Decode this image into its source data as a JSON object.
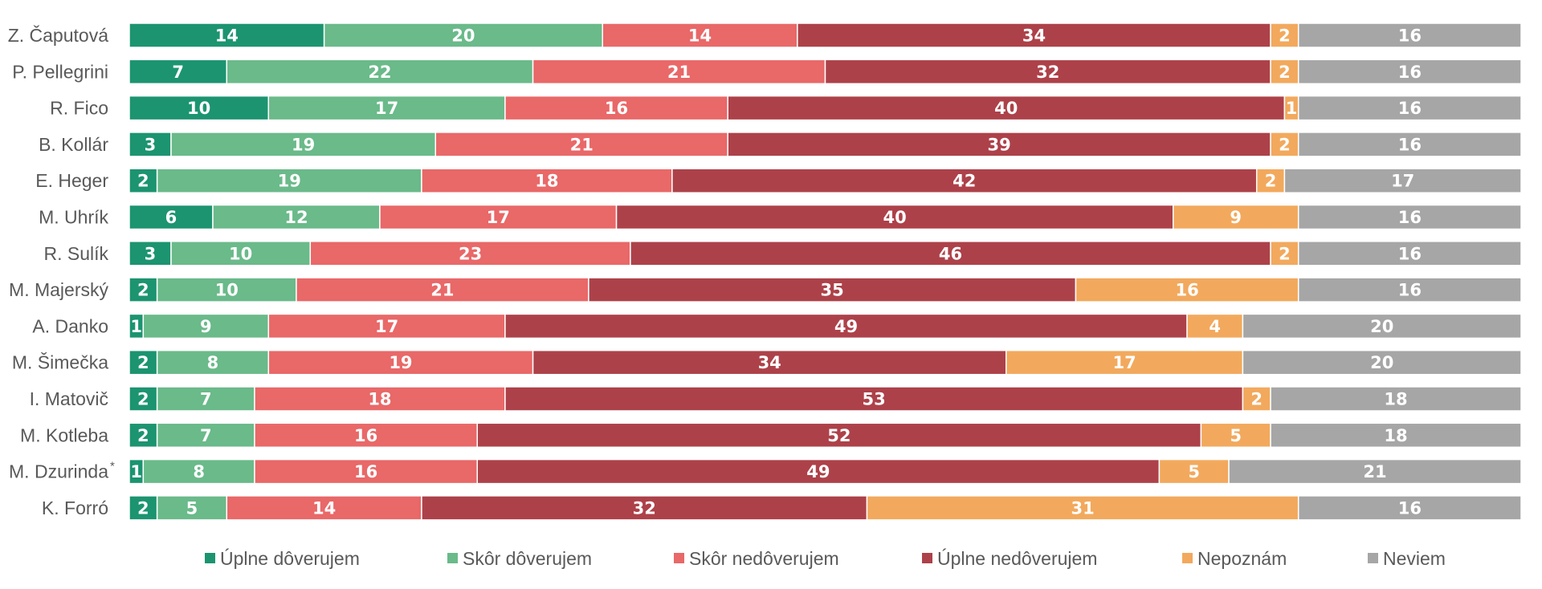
{
  "chart_data": {
    "type": "bar",
    "orientation": "horizontal",
    "stacked": true,
    "title": "",
    "xlabel": "",
    "ylabel": "",
    "xlim": [
      0,
      100
    ],
    "grid": false,
    "legend_position": "bottom",
    "categories": [
      "Z. Čaputová",
      "P. Pellegrini",
      "R. Fico",
      "B. Kollár",
      "E. Heger",
      "M. Uhrík",
      "R. Sulík",
      "M. Majerský",
      "A. Danko",
      "M. Šimečka",
      "I. Matovič",
      "M. Kotleba",
      "M. Dzurinda",
      "K. Forró"
    ],
    "category_marks": [
      "",
      "",
      "",
      "",
      "",
      "",
      "",
      "",
      "",
      "",
      "",
      "",
      "*",
      ""
    ],
    "series": [
      {
        "name": "Úplne dôverujem",
        "color": "#1c9470",
        "values": [
          14,
          7,
          10,
          3,
          2,
          6,
          3,
          2,
          1,
          2,
          2,
          2,
          1,
          2
        ]
      },
      {
        "name": "Skôr dôverujem",
        "color": "#6aba8a",
        "values": [
          20,
          22,
          17,
          19,
          19,
          12,
          10,
          10,
          9,
          8,
          7,
          7,
          8,
          5
        ]
      },
      {
        "name": "Skôr nedôverujem",
        "color": "#e96868",
        "values": [
          14,
          21,
          16,
          21,
          18,
          17,
          23,
          21,
          17,
          19,
          18,
          16,
          16,
          14
        ]
      },
      {
        "name": "Úplne nedôverujem",
        "color": "#ad4149",
        "values": [
          34,
          32,
          40,
          39,
          42,
          40,
          46,
          35,
          49,
          34,
          53,
          52,
          49,
          32
        ]
      },
      {
        "name": "Nepoznám",
        "color": "#f2a95d",
        "values": [
          2,
          2,
          1,
          2,
          2,
          9,
          2,
          16,
          4,
          17,
          2,
          5,
          5,
          31
        ]
      },
      {
        "name": "Neviem",
        "color": "#a6a6a6",
        "values": [
          16,
          16,
          16,
          16,
          17,
          16,
          16,
          16,
          20,
          20,
          18,
          18,
          21,
          16
        ]
      }
    ]
  }
}
